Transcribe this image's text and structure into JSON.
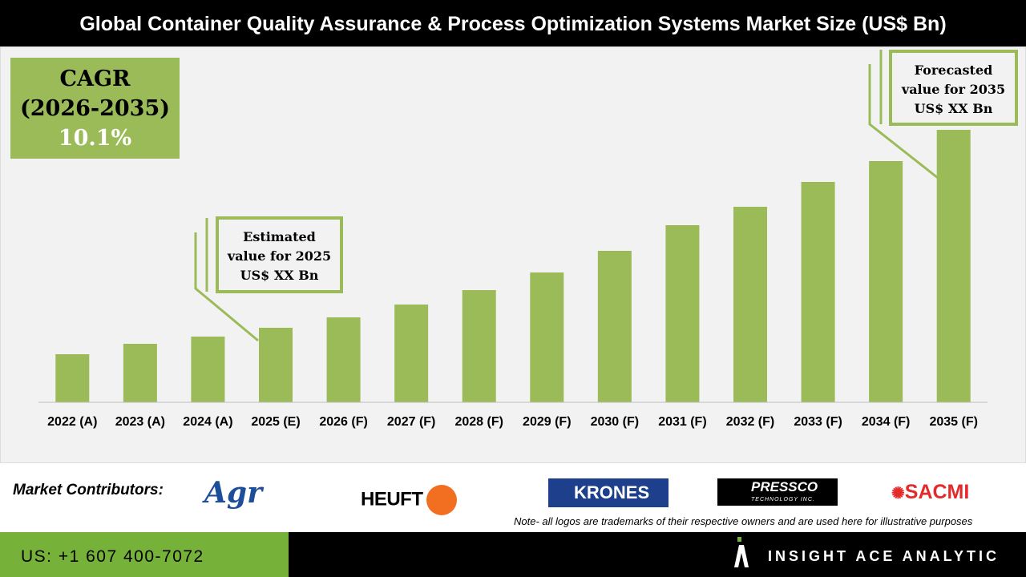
{
  "title": "Global Container Quality Assurance & Process Optimization Systems Market Size (US$ Bn)",
  "cagr": {
    "label": "CAGR",
    "period": "(2026-2035)",
    "value": "10.1%"
  },
  "callouts": {
    "estimated": [
      "Estimated",
      "value for 2025",
      "US$ XX Bn"
    ],
    "forecasted": [
      "Forecasted",
      "value for 2035",
      "US$ XX Bn"
    ]
  },
  "chart_data": {
    "type": "bar",
    "title": "Global Container Quality Assurance & Process Optimization Systems Market Size (US$ Bn)",
    "categories": [
      "2022 (A)",
      "2023 (A)",
      "2024 (A)",
      "2025 (E)",
      "2026 (F)",
      "2027 (F)",
      "2028 (F)",
      "2029 (F)",
      "2030 (F)",
      "2031 (F)",
      "2032 (F)",
      "2033 (F)",
      "2034 (F)",
      "2035 (F)"
    ],
    "values": [
      60,
      73,
      82,
      93,
      106,
      122,
      140,
      162,
      189,
      221,
      244,
      275,
      301,
      340
    ],
    "value_note": "relative heights only; no y-axis printed",
    "bar_color": "#9bbb59",
    "grid": false
  },
  "footer": {
    "contributors_label": "Market Contributors:",
    "logos": [
      "Agr",
      "HEUFT",
      "KRONES",
      "PRESSCO",
      "SACMI"
    ],
    "pressco_sub": "TECHNOLOGY INC.",
    "note": "Note- all logos are trademarks of their respective owners and are used here for illustrative purposes",
    "phone": "US: +1 607 400-7072",
    "brand": "INSIGHT ACE ANALYTIC"
  }
}
